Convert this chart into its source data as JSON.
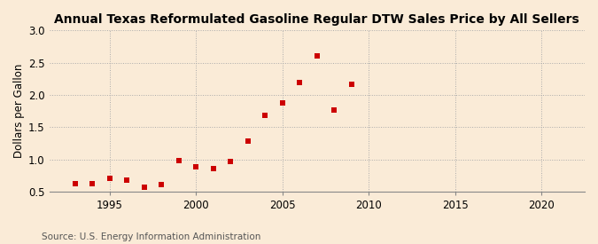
{
  "title": "Annual Texas Reformulated Gasoline Regular DTW Sales Price by All Sellers",
  "ylabel": "Dollars per Gallon",
  "source": "Source: U.S. Energy Information Administration",
  "background_color": "#faebd7",
  "marker_color": "#cc0000",
  "years": [
    1993,
    1994,
    1995,
    1996,
    1997,
    1998,
    1999,
    2000,
    2001,
    2002,
    2003,
    2004,
    2005,
    2006,
    2007,
    2008,
    2009,
    2010
  ],
  "values": [
    0.62,
    0.63,
    0.7,
    0.68,
    0.57,
    0.61,
    0.98,
    0.88,
    0.86,
    0.97,
    1.28,
    1.68,
    1.87,
    2.19,
    2.61,
    1.76,
    2.16,
    null
  ],
  "xlim": [
    1991.5,
    2022.5
  ],
  "ylim": [
    0.5,
    3.0
  ],
  "xticks": [
    1995,
    2000,
    2005,
    2010,
    2015,
    2020
  ],
  "yticks": [
    0.5,
    1.0,
    1.5,
    2.0,
    2.5,
    3.0
  ],
  "title_fontsize": 10,
  "label_fontsize": 8.5,
  "tick_fontsize": 8.5,
  "source_fontsize": 7.5,
  "grid_color": "#aaaaaa",
  "grid_linestyle": ":",
  "spine_color": "#888888"
}
